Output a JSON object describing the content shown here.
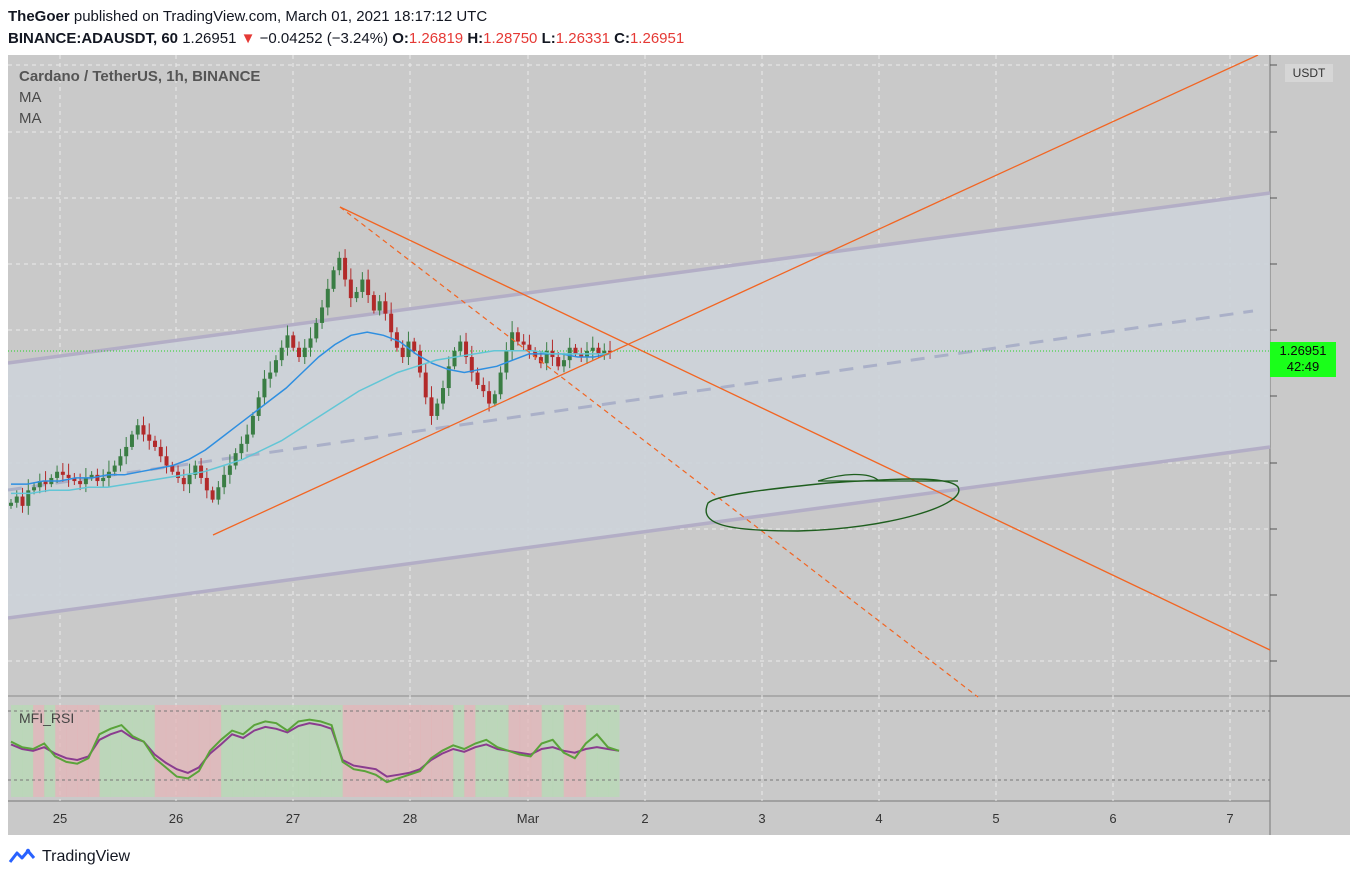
{
  "header": {
    "author": "TheGoer",
    "published_text": "published on TradingView.com, March 01, 2021 18:17:12 UTC",
    "symbol": "BINANCE:ADAUSDT, 60",
    "last": "1.26951",
    "change_arrow": "▼",
    "change": "−0.04252 (−3.24%)",
    "o_label": "O:",
    "o_value": "1.26819",
    "h_label": "H:",
    "h_value": "1.28750",
    "l_label": "L:",
    "l_value": "1.26331",
    "c_label": "C:",
    "c_value": "1.26951"
  },
  "legend": {
    "title": "Cardano / TetherUS, 1h, BINANCE",
    "ma1": "MA",
    "ma2": "MA",
    "indicator": "MFI_RSI"
  },
  "price_axis": {
    "unit": "USDT",
    "current_price": "1.26951",
    "countdown": "42:49"
  },
  "footer": {
    "brand": "TradingView"
  },
  "colors": {
    "background": "#c9c9c9",
    "channel_fill": "#cdd3d9",
    "channel_line": "#b3aec6",
    "trend_line": "#f26522",
    "ma_fast": "#2f8fe0",
    "ma_slow": "#62c6d6",
    "bull_candle": "#3a7d44",
    "bear_candle": "#b22a2a",
    "price_line": "#28d228",
    "price_tag": "#1aff1a",
    "mfi_line": "#8a3c8f",
    "rsi_line": "#5aa33a",
    "ellipse": "#1e5e1e"
  },
  "chart_data": {
    "type": "candlestick",
    "symbol": "ADAUSDT",
    "timeframe": "1h",
    "x_ticks": [
      "25",
      "26",
      "27",
      "28",
      "Mar",
      "2",
      "3",
      "4",
      "5",
      "6",
      "7"
    ],
    "last_price": 1.26951,
    "ohlc_last": {
      "open": 1.26819,
      "high": 1.2875,
      "low": 1.26331,
      "close": 1.26951
    },
    "close_series": [
      0.78,
      0.8,
      0.77,
      0.82,
      0.83,
      0.85,
      0.84,
      0.86,
      0.88,
      0.87,
      0.86,
      0.85,
      0.84,
      0.86,
      0.87,
      0.85,
      0.86,
      0.88,
      0.9,
      0.93,
      0.96,
      1.0,
      1.03,
      1.0,
      0.98,
      0.96,
      0.93,
      0.9,
      0.88,
      0.86,
      0.84,
      0.87,
      0.9,
      0.86,
      0.82,
      0.79,
      0.83,
      0.87,
      0.9,
      0.94,
      0.97,
      1.0,
      1.06,
      1.12,
      1.18,
      1.2,
      1.24,
      1.28,
      1.32,
      1.28,
      1.25,
      1.28,
      1.31,
      1.36,
      1.41,
      1.47,
      1.53,
      1.57,
      1.5,
      1.44,
      1.46,
      1.5,
      1.45,
      1.4,
      1.43,
      1.39,
      1.33,
      1.28,
      1.25,
      1.3,
      1.27,
      1.2,
      1.12,
      1.06,
      1.1,
      1.15,
      1.22,
      1.27,
      1.3,
      1.25,
      1.2,
      1.16,
      1.14,
      1.1,
      1.13,
      1.2,
      1.27,
      1.33,
      1.3,
      1.29,
      1.27,
      1.25,
      1.23,
      1.27,
      1.25,
      1.22,
      1.24,
      1.28,
      1.26,
      1.25,
      1.27,
      1.28,
      1.26,
      1.27,
      1.26951
    ],
    "ma_fast": [
      0.84,
      0.84,
      0.85,
      0.85,
      0.86,
      0.86,
      0.87,
      0.87,
      0.88,
      0.89,
      0.9,
      0.92,
      0.95,
      0.99,
      1.03,
      1.07,
      1.11,
      1.15,
      1.2,
      1.25,
      1.29,
      1.32,
      1.33,
      1.32,
      1.3,
      1.26,
      1.23,
      1.21,
      1.2,
      1.21,
      1.22,
      1.24,
      1.26,
      1.26,
      1.26,
      1.25,
      1.25,
      1.26
    ],
    "ma_slow": [
      0.81,
      0.81,
      0.82,
      0.82,
      0.83,
      0.83,
      0.84,
      0.85,
      0.86,
      0.87,
      0.88,
      0.9,
      0.92,
      0.95,
      0.98,
      1.02,
      1.06,
      1.1,
      1.14,
      1.17,
      1.2,
      1.22,
      1.24,
      1.25,
      1.26,
      1.27,
      1.27,
      1.27,
      1.26,
      1.26,
      1.26,
      1.26
    ],
    "indicator": {
      "name": "MFI_RSI",
      "mfi": [
        55,
        50,
        48,
        52,
        45,
        40,
        38,
        42,
        60,
        66,
        70,
        62,
        58,
        44,
        35,
        28,
        24,
        30,
        45,
        55,
        66,
        62,
        70,
        74,
        72,
        68,
        75,
        78,
        76,
        72,
        38,
        32,
        30,
        28,
        20,
        22,
        24,
        28,
        38,
        45,
        50,
        47,
        52,
        55,
        50,
        48,
        46,
        44,
        50,
        52,
        48,
        46,
        50,
        52,
        50,
        48
      ],
      "rsi": [
        58,
        52,
        50,
        56,
        42,
        36,
        34,
        40,
        66,
        72,
        76,
        64,
        58,
        40,
        30,
        20,
        18,
        26,
        48,
        60,
        70,
        66,
        76,
        80,
        78,
        70,
        80,
        82,
        80,
        76,
        36,
        28,
        26,
        22,
        14,
        18,
        22,
        26,
        40,
        48,
        54,
        50,
        56,
        60,
        52,
        48,
        44,
        42,
        56,
        60,
        46,
        40,
        56,
        66,
        52,
        48
      ]
    }
  }
}
